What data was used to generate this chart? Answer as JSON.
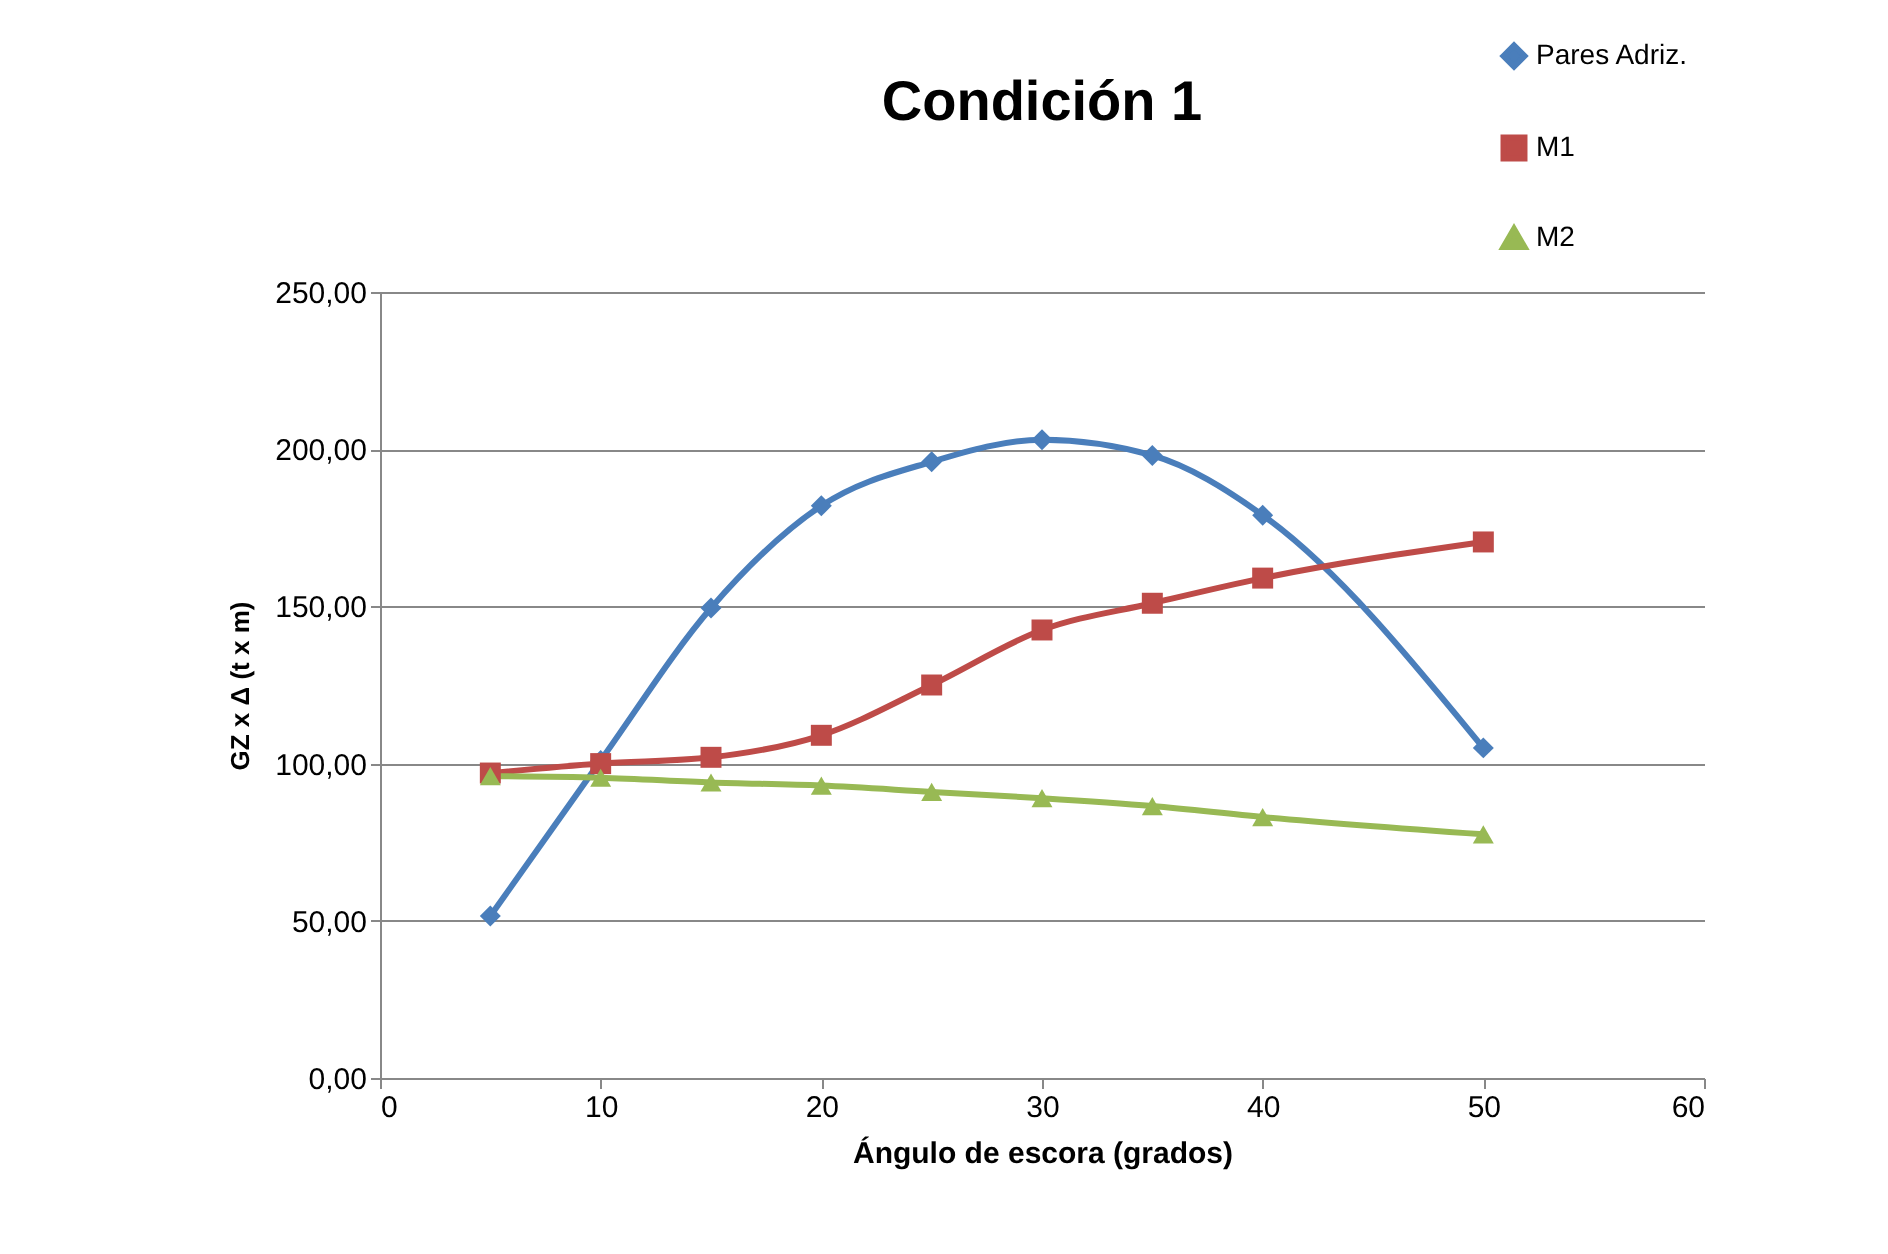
{
  "chart_data": {
    "type": "line",
    "title": "Condición 1",
    "xlabel": "Ángulo de escora (grados)",
    "ylabel": "GZ x Δ (t x m)",
    "x": [
      5,
      10,
      15,
      20,
      25,
      30,
      35,
      40,
      50
    ],
    "series": [
      {
        "name": "Pares Adriz.",
        "color": "#4a7ebb",
        "marker": "diamond",
        "values": [
          51.5,
          101,
          149.5,
          182,
          196,
          203,
          198,
          179,
          105
        ]
      },
      {
        "name": "M1",
        "color": "#be4b48",
        "marker": "square",
        "values": [
          97,
          100,
          102,
          109,
          125,
          142.5,
          151,
          159,
          170.5
        ]
      },
      {
        "name": "M2",
        "color": "#98b954",
        "marker": "triangle",
        "values": [
          96,
          95.5,
          94,
          93,
          91,
          89,
          86.5,
          83,
          77.5
        ]
      }
    ],
    "xlim": [
      0,
      60
    ],
    "xticks": [
      0,
      10,
      20,
      30,
      40,
      50,
      60
    ],
    "ylim": [
      0,
      250
    ],
    "yticks": [
      {
        "value": 0,
        "label": "0,00"
      },
      {
        "value": 50,
        "label": "50,00"
      },
      {
        "value": 100,
        "label": "100,00"
      },
      {
        "value": 150,
        "label": "150,00"
      },
      {
        "value": 200,
        "label": "200,00"
      },
      {
        "value": 250,
        "label": "250,00"
      }
    ],
    "grid": "y",
    "legend": "top right",
    "line_style": "solid"
  }
}
